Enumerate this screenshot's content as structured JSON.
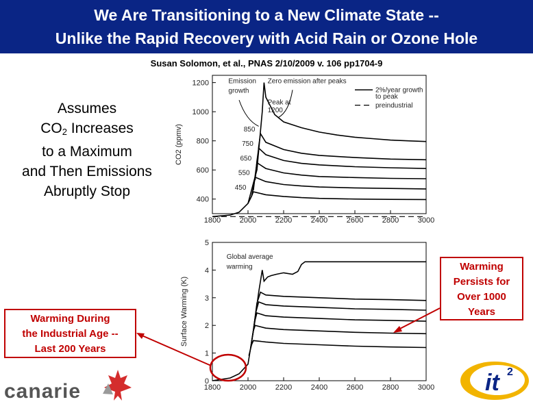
{
  "title": {
    "line1": "We Are Transitioning to a New Climate State --",
    "line2": "Unlike the Rapid Recovery with Acid Rain or Ozone Hole"
  },
  "citation": "Susan Solomon, et al., PNAS 2/10/2009 v. 106 pp1704-9",
  "assumes": {
    "line1": "Assumes",
    "line2_pre": "CO",
    "line2_sub": "2",
    "line2_post": " Increases",
    "line3": "to a Maximum",
    "line4": "and Then Emissions",
    "line5": "Abruptly Stop"
  },
  "callouts": {
    "industrial": [
      "Warming During",
      "the Industrial Age --",
      "Last 200 Years"
    ],
    "persists": [
      "Warming",
      "Persists for",
      "Over 1000",
      "Years"
    ]
  },
  "logos": {
    "canarie": "canarie",
    "it2": "it",
    "it2_sup": "2"
  },
  "chart_data": [
    {
      "type": "line",
      "title": "",
      "xlabel": "",
      "ylabel": "CO2 (ppmv)",
      "xlim": [
        1800,
        3000
      ],
      "ylim": [
        300,
        1250
      ],
      "xticks": [
        1800,
        2000,
        2200,
        2400,
        2600,
        2800,
        3000
      ],
      "yticks": [
        400,
        600,
        800,
        1000,
        1200
      ],
      "annotations": [
        "Emission growth",
        "Zero emission after peaks",
        "Peak at 1200",
        "850",
        "750",
        "650",
        "550",
        "450"
      ],
      "legend": [
        "2%/year growth to peak",
        "preindustrial"
      ],
      "series": [
        {
          "name": "peak 1200",
          "peak": 1200,
          "x": [
            1800,
            1900,
            1950,
            2000,
            2050,
            2080,
            2090,
            2100,
            2150,
            2200,
            2300,
            2400,
            2500,
            2600,
            2700,
            2800,
            2900,
            3000
          ],
          "values": [
            280,
            290,
            310,
            370,
            600,
            1000,
            1200,
            1100,
            980,
            930,
            890,
            860,
            840,
            825,
            815,
            805,
            800,
            795
          ]
        },
        {
          "name": "peak 850",
          "peak": 850,
          "x": [
            2050,
            2060,
            2070,
            2100,
            2200,
            2300,
            2400,
            2600,
            2800,
            3000
          ],
          "values": [
            600,
            760,
            850,
            790,
            740,
            715,
            700,
            685,
            675,
            670
          ]
        },
        {
          "name": "peak 750",
          "peak": 750,
          "x": [
            2040,
            2050,
            2060,
            2100,
            2200,
            2300,
            2400,
            2600,
            2800,
            3000
          ],
          "values": [
            530,
            660,
            750,
            705,
            665,
            645,
            635,
            622,
            615,
            610
          ]
        },
        {
          "name": "peak 650",
          "peak": 650,
          "x": [
            2030,
            2040,
            2050,
            2100,
            2200,
            2300,
            2400,
            2600,
            2800,
            3000
          ],
          "values": [
            460,
            560,
            650,
            610,
            580,
            565,
            555,
            548,
            542,
            540
          ]
        },
        {
          "name": "peak 550",
          "peak": 550,
          "x": [
            2020,
            2030,
            2040,
            2100,
            2200,
            2300,
            2400,
            2600,
            2800,
            3000
          ],
          "values": [
            420,
            480,
            550,
            520,
            500,
            490,
            483,
            477,
            473,
            470
          ]
        },
        {
          "name": "peak 450",
          "peak": 450,
          "x": [
            2000,
            2020,
            2030,
            2100,
            2200,
            2300,
            2400,
            2600,
            2800,
            3000
          ],
          "values": [
            370,
            420,
            450,
            430,
            418,
            410,
            405,
            400,
            398,
            397
          ]
        },
        {
          "name": "preindustrial",
          "dashed": true,
          "x": [
            1800,
            3000
          ],
          "values": [
            280,
            280
          ]
        }
      ]
    },
    {
      "type": "line",
      "title": "",
      "xlabel": "",
      "ylabel": "Surface Warming (K)",
      "xlim": [
        1800,
        3000
      ],
      "ylim": [
        0,
        5
      ],
      "xticks": [
        1800,
        2000,
        2200,
        2400,
        2600,
        2800,
        3000
      ],
      "yticks": [
        0,
        1,
        2,
        3,
        4,
        5
      ],
      "annotations": [
        "Global average warming"
      ],
      "series": [
        {
          "name": "peak 1200",
          "x": [
            1800,
            1850,
            1900,
            1950,
            2000,
            2030,
            2060,
            2080,
            2090,
            2110,
            2130,
            2160,
            2200,
            2250,
            2280,
            2300,
            2320,
            2400,
            2600,
            2800,
            3000
          ],
          "values": [
            0,
            0.05,
            0.1,
            0.25,
            0.6,
            1.8,
            3.2,
            4.0,
            3.6,
            3.75,
            3.8,
            3.85,
            3.9,
            3.85,
            3.95,
            4.2,
            4.3,
            4.3,
            4.3,
            4.3,
            4.3
          ]
        },
        {
          "name": "peak 850",
          "x": [
            2030,
            2050,
            2070,
            2100,
            2200,
            2400,
            2600,
            2800,
            3000
          ],
          "values": [
            1.8,
            2.8,
            3.2,
            3.1,
            3.05,
            3.0,
            2.95,
            2.93,
            2.9
          ]
        },
        {
          "name": "peak 750",
          "x": [
            2025,
            2045,
            2060,
            2100,
            2200,
            2400,
            2600,
            2800,
            3000
          ],
          "values": [
            1.6,
            2.5,
            2.85,
            2.75,
            2.7,
            2.65,
            2.6,
            2.58,
            2.55
          ]
        },
        {
          "name": "peak 650",
          "x": [
            2020,
            2040,
            2050,
            2100,
            2200,
            2400,
            2600,
            2800,
            3000
          ],
          "values": [
            1.4,
            2.2,
            2.45,
            2.35,
            2.3,
            2.25,
            2.2,
            2.18,
            2.15
          ]
        },
        {
          "name": "peak 550",
          "x": [
            2015,
            2030,
            2040,
            2100,
            2200,
            2400,
            2600,
            2800,
            3000
          ],
          "values": [
            1.2,
            1.8,
            2.0,
            1.9,
            1.85,
            1.8,
            1.75,
            1.72,
            1.7
          ]
        },
        {
          "name": "peak 450",
          "x": [
            2005,
            2020,
            2030,
            2100,
            2200,
            2400,
            2600,
            2800,
            3000
          ],
          "values": [
            0.9,
            1.3,
            1.45,
            1.4,
            1.35,
            1.3,
            1.25,
            1.22,
            1.2
          ]
        }
      ]
    }
  ],
  "colors": {
    "title_bg": "#0a2585",
    "title_text": "#ffffff",
    "callout": "#c00000"
  }
}
